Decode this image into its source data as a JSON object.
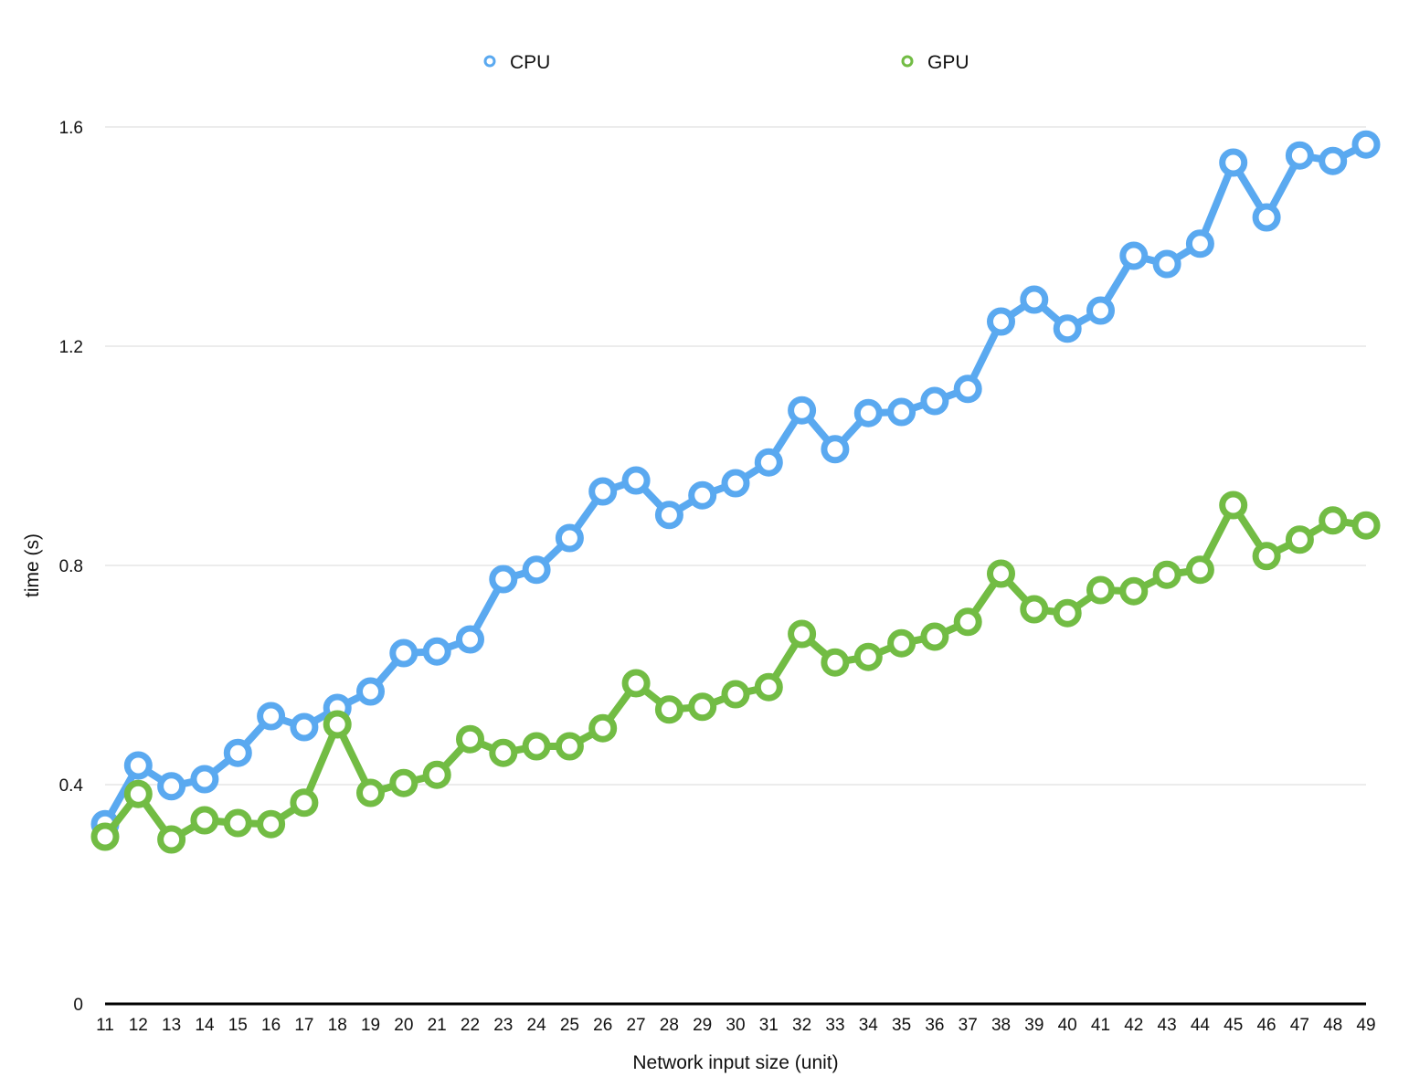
{
  "chart_data": {
    "type": "line",
    "title": "",
    "xlabel": "Network input size (unit)",
    "ylabel": "time (s)",
    "x": [
      11,
      12,
      13,
      14,
      15,
      16,
      17,
      18,
      19,
      20,
      21,
      22,
      23,
      24,
      25,
      26,
      27,
      28,
      29,
      30,
      31,
      32,
      33,
      34,
      35,
      36,
      37,
      38,
      39,
      40,
      41,
      42,
      43,
      44,
      45,
      46,
      47,
      48,
      49
    ],
    "ylim": [
      0,
      1.6
    ],
    "yticks": [
      0,
      0.4,
      0.8,
      1.2,
      1.6
    ],
    "ytick_labels": [
      "0",
      "0.4",
      "0.8",
      "1.2",
      "1.6"
    ],
    "grid": true,
    "legend_position": "top",
    "series": [
      {
        "name": "CPU",
        "color": "#5aa9f0",
        "values": [
          0.328,
          0.435,
          0.397,
          0.41,
          0.458,
          0.525,
          0.505,
          0.54,
          0.57,
          0.64,
          0.643,
          0.665,
          0.775,
          0.792,
          0.85,
          0.935,
          0.955,
          0.892,
          0.928,
          0.95,
          0.988,
          1.083,
          1.012,
          1.078,
          1.08,
          1.1,
          1.122,
          1.245,
          1.285,
          1.232,
          1.265,
          1.365,
          1.35,
          1.387,
          1.535,
          1.435,
          1.548,
          1.538,
          1.568
        ]
      },
      {
        "name": "GPU",
        "color": "#72bc44",
        "values": [
          0.305,
          0.383,
          0.3,
          0.335,
          0.33,
          0.328,
          0.367,
          0.51,
          0.385,
          0.403,
          0.418,
          0.483,
          0.458,
          0.47,
          0.47,
          0.503,
          0.585,
          0.537,
          0.542,
          0.565,
          0.578,
          0.675,
          0.623,
          0.633,
          0.658,
          0.67,
          0.697,
          0.785,
          0.72,
          0.713,
          0.755,
          0.753,
          0.783,
          0.792,
          0.91,
          0.817,
          0.847,
          0.882,
          0.873
        ]
      }
    ]
  }
}
